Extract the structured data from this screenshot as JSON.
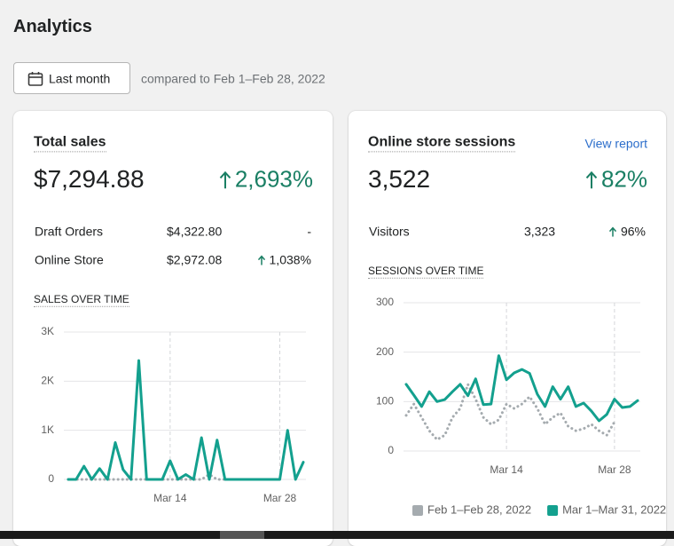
{
  "header": {
    "title": "Analytics"
  },
  "date_filter": {
    "button": "Last month",
    "comparison": "compared to Feb 1–Feb 28, 2022"
  },
  "cards": [
    {
      "title": "Total sales",
      "total": "$7,294.88",
      "change": "2,693%",
      "trend": "up",
      "rows": [
        {
          "label": "Draft Orders",
          "value": "$4,322.80",
          "change": "-"
        },
        {
          "label": "Online Store",
          "value": "$2,972.08",
          "change": "1,038%",
          "trend": "up"
        }
      ],
      "chart": {
        "type": "line",
        "title": "SALES OVER TIME",
        "categories": [
          null,
          null,
          null,
          null,
          null,
          null,
          null,
          null,
          null,
          null,
          null,
          null,
          null,
          "Mar 14",
          null,
          null,
          null,
          null,
          null,
          null,
          null,
          null,
          null,
          null,
          null,
          null,
          null,
          "Mar 28",
          null,
          null,
          null
        ],
        "ylim": [
          0,
          3000
        ],
        "yticks": [
          0,
          {
            "value": 1000,
            "label": "1K"
          },
          {
            "value": 2000,
            "label": "2K"
          },
          {
            "value": 3000,
            "label": "3K"
          }
        ],
        "grid": true,
        "series": [
          {
            "color": "#a5abaf",
            "style": "dotted",
            "values": [
              0,
              0,
              0,
              0,
              0,
              0,
              0,
              0,
              0,
              0,
              0,
              0,
              0,
              0,
              0,
              0,
              0,
              0,
              100,
              0,
              0,
              0,
              0,
              0,
              0,
              0,
              0,
              0,
              null,
              null,
              null
            ]
          },
          {
            "color": "#13a08e",
            "values": [
              0,
              0,
              270,
              0,
              220,
              0,
              750,
              200,
              0,
              2420,
              0,
              0,
              0,
              380,
              0,
              100,
              0,
              850,
              0,
              800,
              0,
              0,
              0,
              0,
              0,
              0,
              0,
              0,
              1000,
              0,
              350
            ]
          }
        ]
      }
    },
    {
      "title": "Online store sessions",
      "link": "View report",
      "total": "3,522",
      "change": "82%",
      "trend": "up",
      "rows": [
        {
          "label": "Visitors",
          "value": "3,323",
          "change": "96%",
          "trend": "up"
        }
      ],
      "chart": {
        "type": "line",
        "title": "SESSIONS OVER TIME",
        "categories": [
          null,
          null,
          null,
          null,
          null,
          null,
          null,
          null,
          null,
          null,
          null,
          null,
          null,
          "Mar 14",
          null,
          null,
          null,
          null,
          null,
          null,
          null,
          null,
          null,
          null,
          null,
          null,
          null,
          "Mar 28",
          null,
          null,
          null
        ],
        "ylim": [
          0,
          300
        ],
        "yticks": [
          0,
          100,
          200,
          300
        ],
        "grid": true,
        "legend": "bottom",
        "series": [
          {
            "name": "Feb 1–Feb 28, 2022",
            "color": "#a5abaf",
            "style": "dotted",
            "values": [
              72,
              95,
              68,
              41,
              23,
              32,
              68,
              86,
              135,
              105,
              68,
              54,
              63,
              95,
              86,
              95,
              110,
              86,
              54,
              68,
              77,
              50,
              41,
              45,
              54,
              41,
              32,
              59,
              null,
              null,
              null
            ]
          },
          {
            "name": "Mar 1–Mar 31, 2022",
            "color": "#13a08e",
            "values": [
              135,
              113,
              90,
              120,
              100,
              104,
              120,
              135,
              112,
              146,
              94,
              95,
              193,
              144,
              158,
              165,
              157,
              115,
              90,
              130,
              105,
              130,
              90,
              97,
              81,
              61,
              74,
              105,
              88,
              90,
              102
            ]
          }
        ]
      }
    }
  ]
}
